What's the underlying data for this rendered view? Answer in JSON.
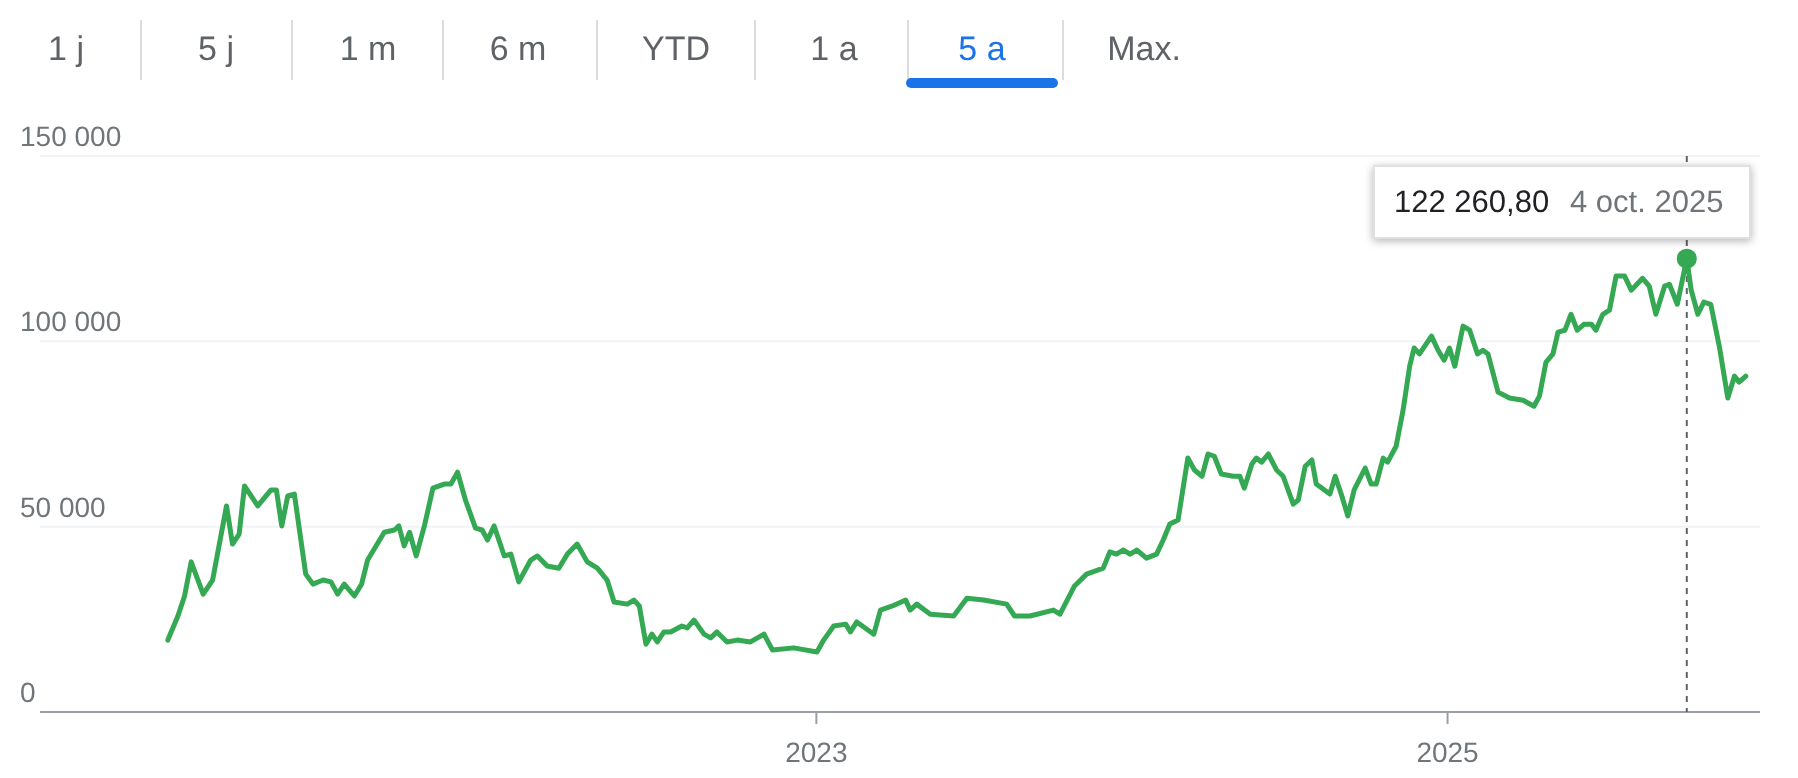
{
  "chart_data": {
    "type": "line",
    "x": [
      2020.945,
      2020.977,
      2020.998,
      2021.019,
      2021.057,
      2021.087,
      2021.131,
      2021.15,
      2021.171,
      2021.188,
      2021.23,
      2021.272,
      2021.289,
      2021.306,
      2021.325,
      2021.346,
      2021.382,
      2021.405,
      2021.437,
      2021.462,
      2021.483,
      2021.504,
      2021.536,
      2021.559,
      2021.578,
      2021.631,
      2021.663,
      2021.677,
      2021.694,
      2021.711,
      2021.732,
      2021.758,
      2021.785,
      2021.821,
      2021.842,
      2021.863,
      2021.888,
      2021.92,
      2021.941,
      2021.958,
      2021.979,
      2022.011,
      2022.032,
      2022.057,
      2022.095,
      2022.116,
      2022.147,
      2022.184,
      2022.211,
      2022.242,
      2022.274,
      2022.306,
      2022.337,
      2022.359,
      2022.401,
      2022.422,
      2022.439,
      2022.46,
      2022.479,
      2022.496,
      2022.517,
      2022.538,
      2022.574,
      2022.591,
      2022.612,
      2022.644,
      2022.665,
      2022.685,
      2022.717,
      2022.749,
      2022.791,
      2022.834,
      2022.861,
      2022.928,
      2023.002,
      2023.023,
      2023.055,
      2023.093,
      2023.108,
      2023.128,
      2023.182,
      2023.203,
      2023.241,
      2023.283,
      2023.297,
      2023.318,
      2023.361,
      2023.435,
      2023.477,
      2023.53,
      2023.603,
      2023.628,
      2023.677,
      2023.751,
      2023.772,
      2023.818,
      2023.856,
      2023.909,
      2023.93,
      2023.951,
      2023.973,
      2023.994,
      2024.015,
      2024.046,
      2024.078,
      2024.099,
      2024.12,
      2024.146,
      2024.177,
      2024.198,
      2024.222,
      2024.241,
      2024.261,
      2024.283,
      2024.321,
      2024.342,
      2024.356,
      2024.38,
      2024.394,
      2024.411,
      2024.432,
      2024.458,
      2024.479,
      2024.511,
      2024.527,
      2024.549,
      2024.57,
      2024.584,
      2024.627,
      2024.644,
      2024.663,
      2024.684,
      2024.704,
      2024.739,
      2024.758,
      2024.774,
      2024.796,
      2024.81,
      2024.837,
      2024.859,
      2024.88,
      2024.894,
      2024.911,
      2024.949,
      2024.97,
      2024.989,
      2025.006,
      2025.023,
      2025.049,
      2025.07,
      2025.095,
      2025.112,
      2025.128,
      2025.16,
      2025.196,
      2025.239,
      2025.274,
      2025.291,
      2025.312,
      2025.334,
      2025.35,
      2025.372,
      2025.391,
      2025.411,
      2025.432,
      2025.456,
      2025.47,
      2025.492,
      2025.513,
      2025.534,
      2025.561,
      2025.582,
      2025.618,
      2025.639,
      2025.66,
      2025.688,
      2025.703,
      2025.728,
      2025.758,
      2025.772,
      2025.793,
      2025.812,
      2025.834,
      2025.861,
      2025.888,
      2025.909,
      2025.924,
      2025.945
    ],
    "series": [
      {
        "color": "#34a853",
        "values": [
          19400,
          25900,
          31300,
          40500,
          31800,
          35600,
          55600,
          45300,
          48000,
          61000,
          55600,
          59900,
          59900,
          50200,
          58300,
          58800,
          37200,
          34500,
          35600,
          35100,
          31800,
          34500,
          31300,
          34500,
          41000,
          48500,
          49100,
          50200,
          44800,
          48500,
          42100,
          50200,
          60400,
          61500,
          61500,
          64700,
          57200,
          49600,
          49100,
          46400,
          50200,
          42100,
          42600,
          35100,
          41000,
          42100,
          39400,
          38800,
          42600,
          45300,
          40500,
          38800,
          35600,
          29700,
          29100,
          30200,
          28600,
          18300,
          21000,
          18900,
          21600,
          21600,
          23200,
          22700,
          24800,
          21000,
          20000,
          21600,
          18900,
          19400,
          18900,
          21000,
          16700,
          17300,
          16200,
          19400,
          23200,
          23700,
          21600,
          24300,
          21000,
          27500,
          28600,
          30200,
          27500,
          29100,
          26400,
          25900,
          30700,
          30200,
          29100,
          25900,
          25900,
          27500,
          26400,
          34000,
          37200,
          38800,
          43200,
          42600,
          43700,
          42600,
          43700,
          41500,
          42600,
          46400,
          50700,
          51800,
          68500,
          65300,
          63600,
          69600,
          69000,
          64200,
          63600,
          63600,
          60400,
          66900,
          68500,
          67400,
          69600,
          65300,
          63600,
          56100,
          57200,
          66300,
          68000,
          61500,
          58800,
          63600,
          58800,
          52900,
          59900,
          65800,
          61500,
          61500,
          68500,
          67400,
          71700,
          81400,
          93300,
          98200,
          96600,
          101400,
          97600,
          94900,
          98200,
          93300,
          104100,
          103000,
          96600,
          97600,
          96600,
          86300,
          84700,
          84100,
          82500,
          85200,
          94400,
          96600,
          102500,
          103000,
          107300,
          103000,
          104600,
          104600,
          103000,
          107300,
          108400,
          117600,
          117600,
          113800,
          117000,
          114900,
          107300,
          114900,
          115400,
          110000,
          122300,
          113800,
          107300,
          110600,
          110000,
          98700,
          84700,
          90600,
          89000,
          90600
        ]
      }
    ],
    "xlim": [
      2020.54,
      2025.99
    ],
    "xticks": [
      2023,
      2025
    ],
    "ylim": [
      0,
      150000
    ],
    "yticks": [
      {
        "value": 0,
        "label": "0"
      },
      {
        "value": 50000,
        "label": "50 000"
      },
      {
        "value": 100000,
        "label": "100 000"
      },
      {
        "value": 150000,
        "label": "150 000"
      }
    ],
    "grid": "y",
    "marker": "none",
    "line_style": "solid",
    "ref_lines": [
      {
        "axis": "x",
        "value": 2025.758,
        "line_style": "dashed",
        "color": "#5f6368"
      }
    ],
    "annotations": [
      "1 j",
      "5 j",
      "1 m",
      "6 m",
      "YTD",
      "1 a",
      "5 a",
      "Max.",
      "122 260,80",
      "4 oct. 2025"
    ]
  }
}
